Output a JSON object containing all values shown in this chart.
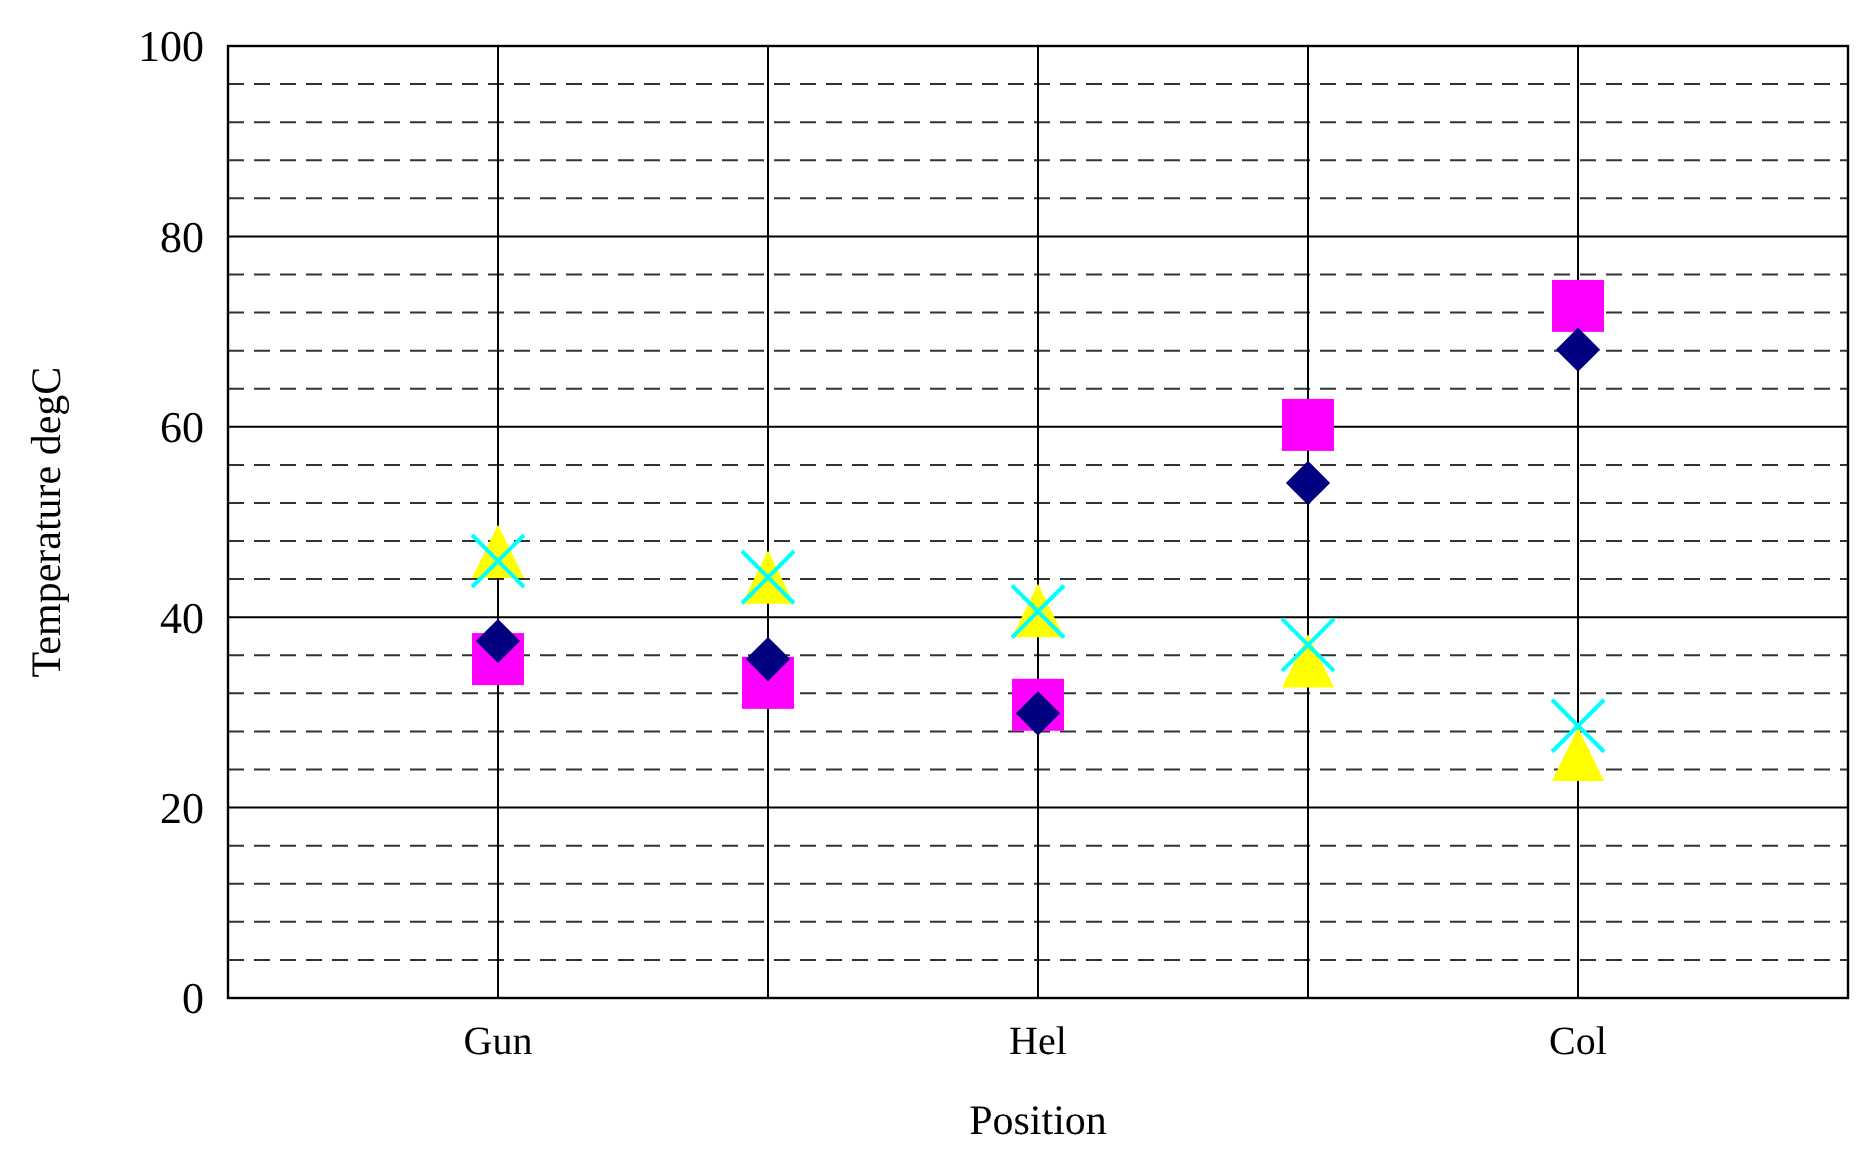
{
  "chart_data": {
    "type": "scatter",
    "xlabel": "Position",
    "ylabel": "Temperature degC",
    "categories": [
      "Gun",
      null,
      "Hel",
      null,
      "Col"
    ],
    "ylim": [
      0,
      100
    ],
    "yticks": [
      0,
      {
        "value": 4,
        "label": null
      },
      {
        "value": 8,
        "label": null
      },
      {
        "value": 12,
        "label": null
      },
      {
        "value": 16,
        "label": null
      },
      20,
      {
        "value": 24,
        "label": null
      },
      {
        "value": 28,
        "label": null
      },
      {
        "value": 32,
        "label": null
      },
      {
        "value": 36,
        "label": null
      },
      40,
      {
        "value": 44,
        "label": null
      },
      {
        "value": 48,
        "label": null
      },
      {
        "value": 52,
        "label": null
      },
      {
        "value": 56,
        "label": null
      },
      60,
      {
        "value": 64,
        "label": null
      },
      {
        "value": 68,
        "label": null
      },
      {
        "value": 72,
        "label": null
      },
      {
        "value": 76,
        "label": null
      },
      80,
      {
        "value": 84,
        "label": null
      },
      {
        "value": 88,
        "label": null
      },
      {
        "value": 92,
        "label": null
      },
      {
        "value": 96,
        "label": null
      },
      100
    ],
    "grid": true,
    "series": [
      {
        "color": "#000080",
        "marker": "diamond",
        "values": [
          37.5,
          35.6,
          29.9,
          54.1,
          68.1
        ]
      },
      {
        "color": "#ff00ff",
        "marker": "square",
        "values": [
          35.6,
          33.1,
          30.8,
          60.2,
          72.7
        ]
      },
      {
        "color": "#ffff00",
        "marker": "triangle",
        "values": [
          46.7,
          44.0,
          40.5,
          35.2,
          25.4
        ]
      },
      {
        "color": "#00ffff",
        "marker": "cross",
        "values": [
          45.9,
          44.2,
          40.6,
          37.1,
          28.6
        ]
      }
    ]
  }
}
